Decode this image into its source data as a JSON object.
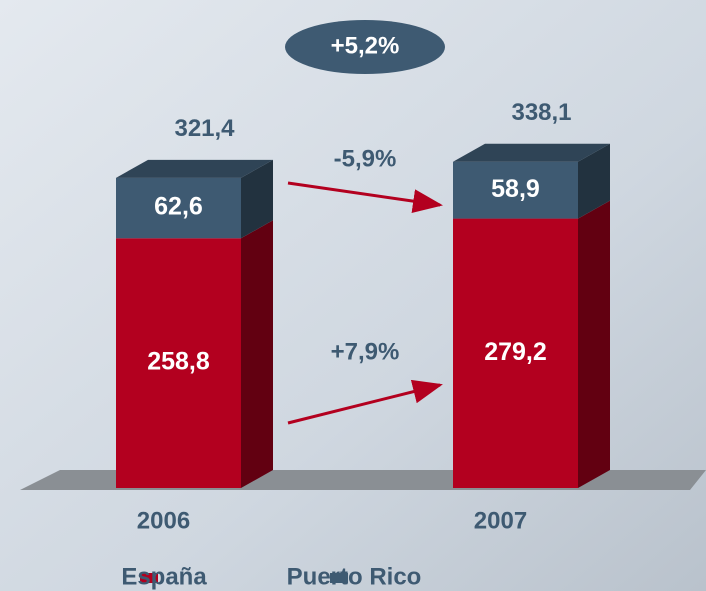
{
  "chart_data": {
    "type": "bar",
    "stacked": true,
    "categories": [
      "2006",
      "2007"
    ],
    "series": [
      {
        "name": "España",
        "color": "#b3001f",
        "values": [
          258.8,
          279.2
        ],
        "value_labels": [
          "258,8",
          "279,2"
        ]
      },
      {
        "name": "Puerto Rico",
        "color": "#3e5a72",
        "values": [
          62.6,
          58.9
        ],
        "value_labels": [
          "62,6",
          "58,9"
        ]
      }
    ],
    "totals": [
      321.4,
      338.1
    ],
    "total_labels": [
      "321,4",
      "338,1"
    ],
    "annotations": [
      "+5,2%",
      "-5,9%",
      "+7,9%"
    ]
  }
}
